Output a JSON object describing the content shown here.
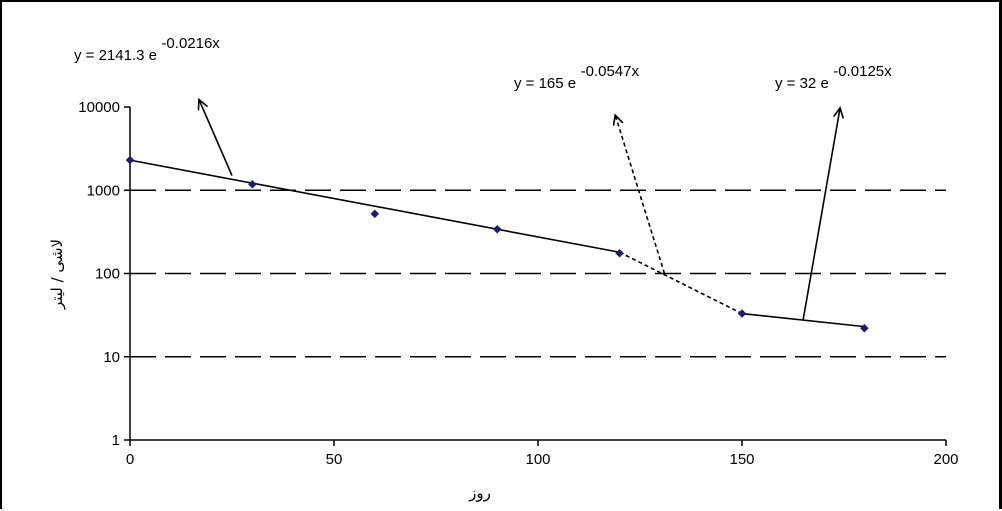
{
  "chart_data": {
    "type": "scatter",
    "title": "",
    "xlabel": "روز",
    "ylabel": "لاشی / لیتر",
    "x_scale": "linear",
    "y_scale": "log",
    "xlim": [
      0,
      200
    ],
    "ylim": [
      1,
      10000
    ],
    "x_ticks": [
      0,
      50,
      100,
      150,
      200
    ],
    "y_ticks": [
      1,
      10,
      100,
      1000,
      10000
    ],
    "grid": {
      "horizontal_major": true,
      "horizontal_style": "dashed",
      "vertical": false
    },
    "legend": "none",
    "marker_color": "#1a1a7a",
    "line_color": "#000000",
    "series": [
      {
        "values_x": [
          0,
          30,
          60,
          90,
          120,
          150,
          180
        ],
        "values_y": [
          2300,
          1180,
          520,
          340,
          175,
          33,
          22
        ]
      }
    ],
    "trendlines": [
      {
        "style": "solid",
        "equation": {
          "base": "y = 2141.3 e",
          "exponent": "-0.0216x"
        },
        "x": [
          0,
          120
        ],
        "y": [
          2300,
          180
        ]
      },
      {
        "style": "dashed",
        "equation": {
          "base": "y = 165 e",
          "exponent": "-0.0547x"
        },
        "x": [
          120,
          150
        ],
        "y": [
          180,
          33
        ]
      },
      {
        "style": "solid",
        "equation": {
          "base": "y = 32 e",
          "exponent": "-0.0125x"
        },
        "x": [
          150,
          180
        ],
        "y": [
          33,
          23
        ]
      }
    ],
    "annotation_arrows": [
      {
        "style": "solid",
        "from": [
          25,
          1500
        ],
        "to": [
          17,
          12000
        ]
      },
      {
        "style": "dashed",
        "from": [
          131,
          100
        ],
        "to": [
          119,
          7800
        ]
      },
      {
        "style": "solid",
        "from": [
          165,
          28
        ],
        "to": [
          174,
          9500
        ]
      }
    ]
  }
}
